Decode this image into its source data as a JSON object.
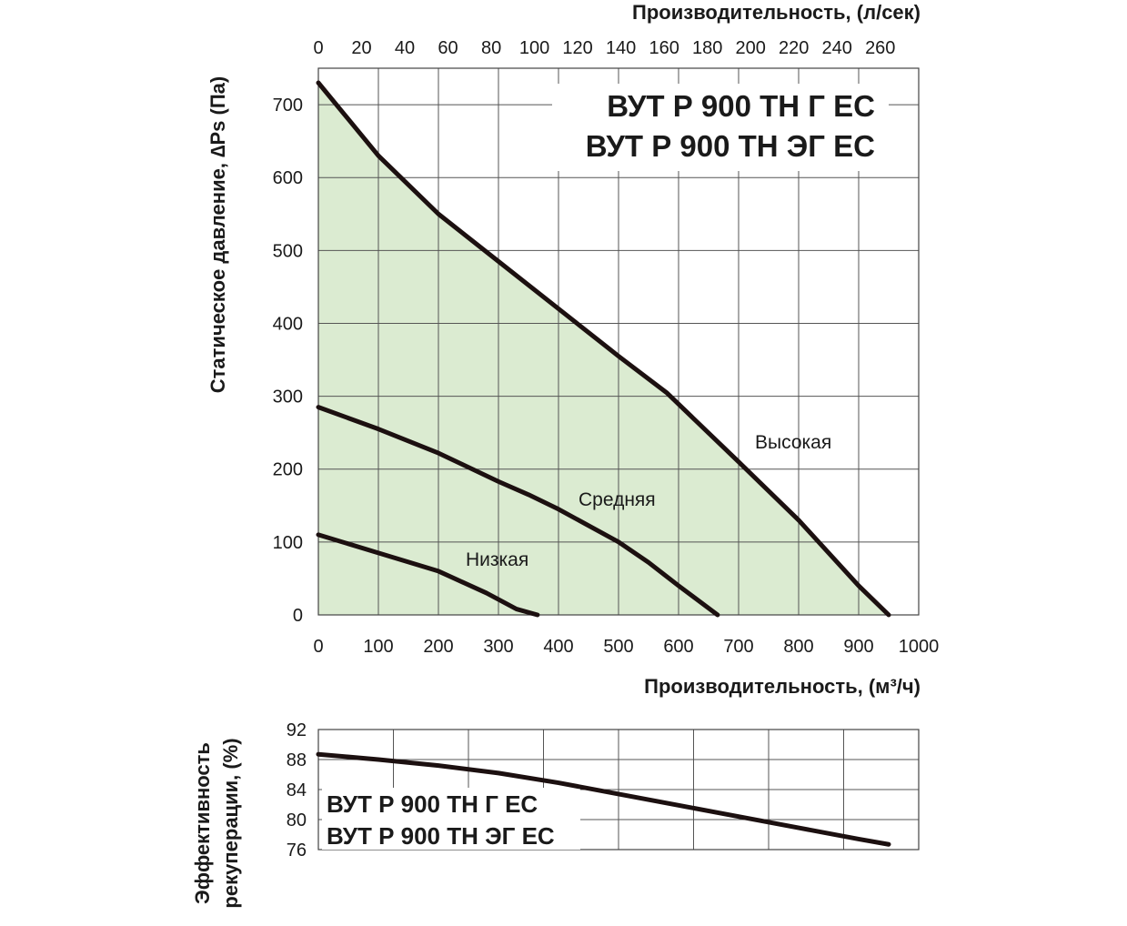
{
  "chart_data": [
    {
      "type": "line",
      "xlabel_top": "Производительность, (л/сек)",
      "xlabel": "Производительность, (м³/ч)",
      "ylabel": "Статическое давление, ∆Ps (Па)",
      "xlim": [
        0,
        1000
      ],
      "ylim": [
        0,
        750
      ],
      "x_ticks": [
        0,
        100,
        200,
        300,
        400,
        500,
        600,
        700,
        800,
        900,
        1000
      ],
      "y_ticks": [
        0,
        100,
        200,
        300,
        400,
        500,
        600,
        700
      ],
      "top_ticks": [
        0,
        20,
        40,
        60,
        80,
        100,
        120,
        140,
        160,
        180,
        200,
        220,
        240,
        260
      ],
      "grid": true,
      "fill_color": "#dbebd1",
      "line_color": "#1c1010",
      "models": [
        "ВУТ Р 900 ТН Г ЕС",
        "ВУТ Р 900 ТН ЭГ ЕС"
      ],
      "series": [
        {
          "name": "Высокая",
          "x": [
            0,
            50,
            100,
            200,
            300,
            400,
            500,
            580,
            700,
            800,
            900,
            950
          ],
          "y": [
            730,
            680,
            630,
            550,
            485,
            420,
            355,
            305,
            210,
            130,
            40,
            0
          ]
        },
        {
          "name": "Средняя",
          "x": [
            0,
            100,
            200,
            300,
            350,
            400,
            500,
            550,
            600,
            665
          ],
          "y": [
            285,
            255,
            222,
            183,
            165,
            145,
            100,
            72,
            40,
            0
          ]
        },
        {
          "name": "Низкая",
          "x": [
            0,
            100,
            200,
            280,
            330,
            365
          ],
          "y": [
            110,
            85,
            60,
            30,
            8,
            0
          ]
        }
      ]
    },
    {
      "type": "line",
      "ylabel": "Эффективность рекуперации, (%)",
      "xlim": [
        0,
        1000
      ],
      "ylim": [
        76,
        92
      ],
      "y_ticks": [
        76,
        80,
        84,
        88,
        92
      ],
      "grid": true,
      "models": [
        "ВУТ Р 900 ТН Г ЕС",
        "ВУТ Р 900 ТН ЭГ ЕС"
      ],
      "series": [
        {
          "x": [
            0,
            100,
            200,
            300,
            400,
            500,
            600,
            700,
            800,
            900,
            950
          ],
          "y": [
            88.7,
            88.0,
            87.2,
            86.2,
            84.9,
            83.4,
            81.9,
            80.4,
            78.9,
            77.4,
            76.7
          ]
        }
      ]
    }
  ]
}
